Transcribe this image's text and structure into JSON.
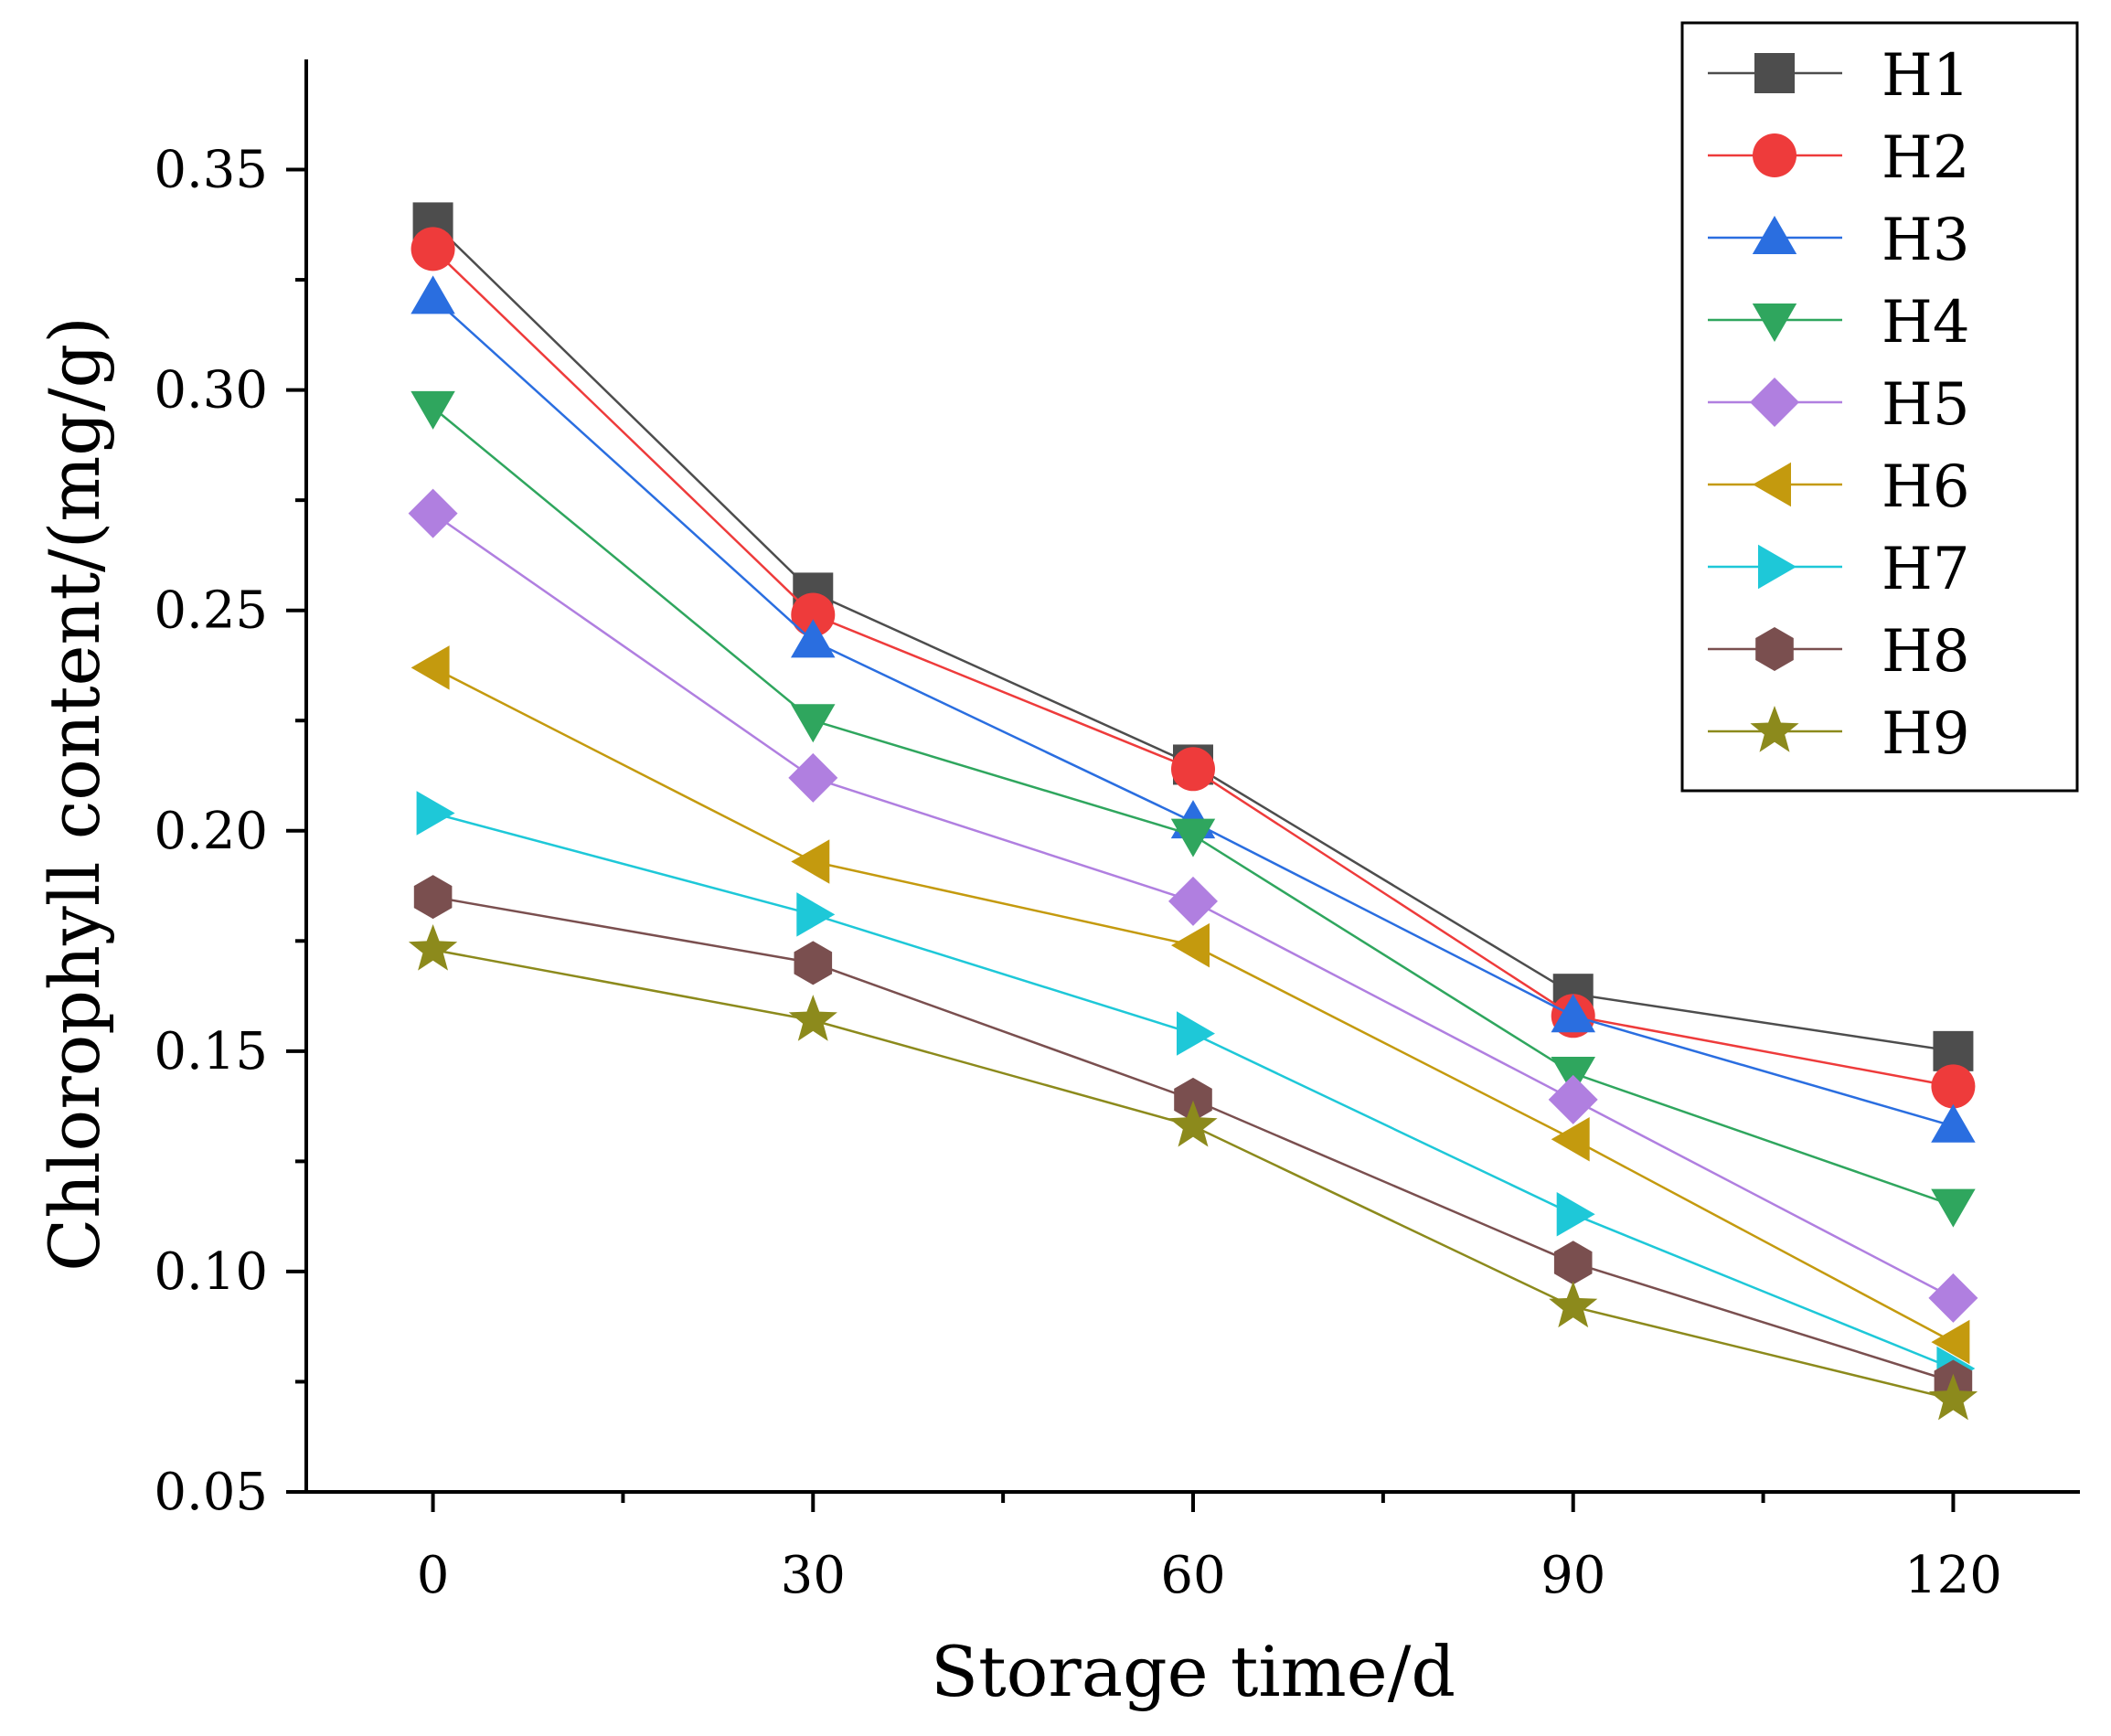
{
  "chart_data": {
    "type": "line",
    "title": "",
    "xlabel": "Storage time/d",
    "ylabel": "Chlorophyll content/(mg/g)",
    "x": [
      0,
      30,
      60,
      90,
      120
    ],
    "x_tick_labels": [
      "0",
      "30",
      "60",
      "90",
      "120"
    ],
    "xlim": [
      -10,
      130
    ],
    "ylim": [
      0.05,
      0.375
    ],
    "y_ticks": [
      0.05,
      0.1,
      0.15,
      0.2,
      0.25,
      0.3,
      0.35
    ],
    "y_tick_labels": [
      "0.05",
      "0.10",
      "0.15",
      "0.20",
      "0.25",
      "0.30",
      "0.35"
    ],
    "grid": false,
    "legend_position": "top-right",
    "series": [
      {
        "name": "H1",
        "marker": "square",
        "color": "#4d4d4d",
        "values": [
          0.338,
          0.254,
          0.215,
          0.163,
          0.15
        ]
      },
      {
        "name": "H2",
        "marker": "circle",
        "color": "#ee3b3b",
        "values": [
          0.332,
          0.249,
          0.214,
          0.158,
          0.142
        ]
      },
      {
        "name": "H3",
        "marker": "triangle-up",
        "color": "#2a6ee0",
        "values": [
          0.321,
          0.243,
          0.202,
          0.158,
          0.133
        ]
      },
      {
        "name": "H4",
        "marker": "triangle-down",
        "color": "#2fa65e",
        "values": [
          0.296,
          0.225,
          0.199,
          0.145,
          0.115
        ]
      },
      {
        "name": "H5",
        "marker": "diamond",
        "color": "#b07fe0",
        "values": [
          0.272,
          0.212,
          0.184,
          0.139,
          0.094
        ]
      },
      {
        "name": "H6",
        "marker": "triangle-left",
        "color": "#c49a0e",
        "values": [
          0.237,
          0.193,
          0.174,
          0.13,
          0.084
        ]
      },
      {
        "name": "H7",
        "marker": "triangle-right",
        "color": "#1ec8d8",
        "values": [
          0.204,
          0.181,
          0.154,
          0.113,
          0.078
        ]
      },
      {
        "name": "H8",
        "marker": "hexagon",
        "color": "#7a4f4f",
        "values": [
          0.185,
          0.17,
          0.139,
          0.102,
          0.075
        ]
      },
      {
        "name": "H9",
        "marker": "star",
        "color": "#8c8a1c",
        "values": [
          0.173,
          0.157,
          0.133,
          0.092,
          0.071
        ]
      }
    ]
  }
}
